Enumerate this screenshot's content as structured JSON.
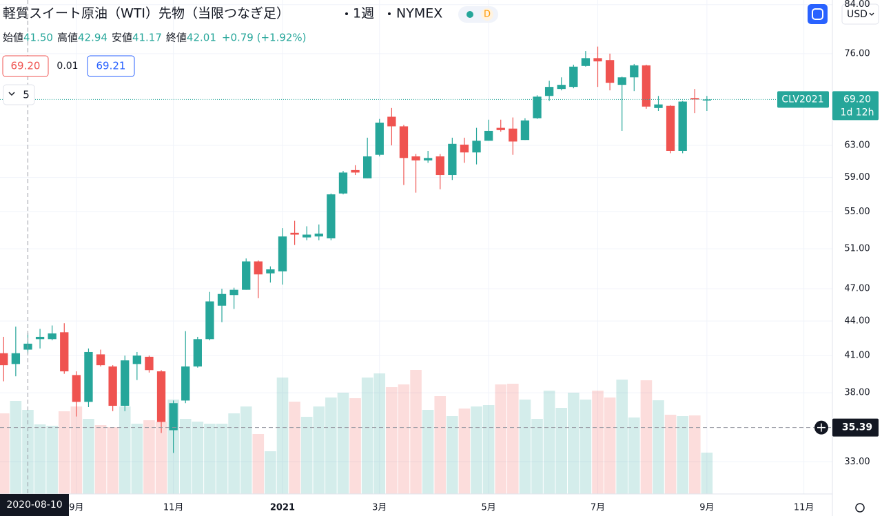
{
  "header": {
    "title": "軽質スイート原油（WTI）先物（当限つなぎ足）",
    "interval": "1週",
    "exchange": "NYMEX",
    "badge": "D",
    "ohlc": [
      {
        "label": "始値",
        "value": "41.50"
      },
      {
        "label": "高値",
        "value": "42.94"
      },
      {
        "label": "安値",
        "value": "41.17"
      },
      {
        "label": "終値",
        "value": "42.01"
      }
    ],
    "change": "+0.79 (+1.92%)"
  },
  "quote": {
    "bid": "69.20",
    "spread": "0.01",
    "ask": "69.21"
  },
  "indicators": "5",
  "currency": "USD",
  "chart_data": {
    "type": "candlestick",
    "categories": [
      null,
      null,
      "2020-08-10",
      null,
      null,
      null,
      null,
      null,
      null,
      null,
      null,
      null,
      null,
      null,
      null,
      null,
      null,
      null,
      null,
      null,
      null,
      null,
      null,
      null,
      null,
      null,
      null,
      null,
      null,
      null,
      null,
      null,
      null,
      null,
      null,
      null,
      null,
      null,
      null,
      null,
      null,
      null,
      null,
      null,
      null,
      null,
      null,
      null,
      null,
      null,
      null,
      null,
      null,
      null,
      null,
      null,
      null,
      null,
      null
    ],
    "open": [
      41.2,
      40.3,
      41.5,
      42.4,
      42.4,
      43.0,
      39.4,
      37.3,
      41.1,
      40.1,
      37.0,
      40.3,
      40.9,
      39.7,
      35.2,
      37.4,
      40.1,
      42.4,
      45.4,
      46.4,
      46.9,
      49.7,
      48.5,
      48.7,
      52.7,
      52.2,
      52.3,
      52.1,
      57.1,
      59.9,
      58.9,
      61.8,
      66.8,
      65.5,
      61.6,
      61.1,
      61.6,
      59.3,
      63.1,
      62.1,
      63.6,
      65.3,
      65.2,
      63.7,
      66.6,
      69.7,
      70.7,
      71.0,
      74.1,
      75.3,
      75.0,
      71.3,
      72.4,
      74.2,
      68.0,
      68.3,
      62.3,
      69.4,
      69.1
    ],
    "high": [
      42.6,
      43.5,
      42.94,
      43.3,
      43.6,
      43.8,
      39.7,
      41.6,
      41.5,
      40.2,
      41.0,
      41.3,
      41.0,
      39.8,
      37.4,
      43.1,
      42.6,
      46.7,
      47.0,
      47.1,
      50.0,
      49.8,
      49.2,
      53.2,
      54.0,
      53.4,
      53.6,
      57.1,
      59.8,
      60.5,
      64.0,
      66.5,
      68.0,
      65.7,
      61.9,
      62.3,
      61.9,
      64.0,
      64.0,
      65.3,
      66.4,
      66.4,
      66.7,
      66.6,
      69.8,
      71.9,
      72.4,
      74.3,
      76.4,
      77.1,
      76.0,
      72.5,
      74.4,
      74.3,
      69.7,
      68.4,
      69.0,
      70.7,
      69.7
    ],
    "low": [
      38.9,
      39.3,
      41.17,
      41.6,
      42.3,
      39.5,
      36.2,
      36.9,
      40.1,
      36.6,
      36.6,
      39.0,
      39.6,
      35.0,
      33.6,
      37.2,
      40.0,
      42.3,
      43.9,
      45.1,
      46.9,
      46.1,
      47.6,
      47.4,
      51.4,
      51.9,
      51.9,
      51.9,
      57.0,
      59.3,
      58.9,
      61.6,
      63.0,
      58.1,
      57.2,
      60.8,
      57.6,
      58.7,
      60.8,
      60.6,
      63.6,
      64.8,
      61.8,
      63.7,
      66.5,
      69.0,
      70.5,
      70.8,
      74.0,
      71.0,
      70.5,
      64.9,
      70.4,
      67.9,
      67.6,
      62.0,
      62.0,
      67.3,
      67.6
    ],
    "close": [
      40.2,
      41.2,
      42.01,
      42.6,
      42.9,
      39.7,
      37.3,
      41.3,
      40.2,
      37.0,
      40.6,
      41.0,
      39.8,
      35.8,
      37.2,
      40.1,
      42.4,
      45.8,
      46.5,
      46.9,
      49.7,
      48.4,
      48.9,
      52.3,
      52.5,
      52.5,
      52.6,
      57.0,
      59.6,
      59.6,
      61.6,
      66.0,
      65.5,
      61.4,
      61.1,
      61.4,
      59.3,
      63.2,
      62.1,
      63.6,
      64.9,
      65.0,
      63.5,
      66.3,
      69.6,
      71.0,
      71.3,
      74.0,
      75.3,
      74.8,
      71.6,
      72.4,
      74.2,
      68.2,
      68.5,
      62.3,
      68.9,
      69.2,
      69.2
    ],
    "volume": [
      117,
      135,
      122,
      101,
      99,
      120,
      127,
      109,
      100,
      97,
      127,
      102,
      107,
      105,
      137,
      109,
      105,
      102,
      102,
      117,
      127,
      87,
      62,
      169,
      134,
      112,
      127,
      140,
      147,
      139,
      169,
      175,
      155,
      159,
      180,
      122,
      142,
      113,
      124,
      127,
      129,
      159,
      160,
      137,
      109,
      150,
      125,
      147,
      137,
      150,
      140,
      166,
      111,
      165,
      136,
      115,
      113,
      114,
      60
    ],
    "colors": {
      "up": "#26a69a",
      "down": "#ef5350"
    },
    "log_scale": true,
    "grid": true,
    "ylim": [
      30.9,
      84.8
    ],
    "yticks": [
      {
        "value": 33,
        "label": "33.00"
      },
      {
        "value": 38,
        "label": "38.00"
      },
      {
        "value": 41,
        "label": "41.00"
      },
      {
        "value": 44,
        "label": "44.00"
      },
      {
        "value": 47,
        "label": "47.00"
      },
      {
        "value": 51,
        "label": "51.00"
      },
      {
        "value": 55,
        "label": "55.00"
      },
      {
        "value": 59,
        "label": "59.00"
      },
      {
        "value": 63,
        "label": "63.00"
      },
      {
        "value": 76,
        "label": "76.00"
      },
      {
        "value": 84,
        "label": "84.00"
      }
    ],
    "xlim": [
      -0.3,
      68.35
    ],
    "xticks": [
      {
        "value": 6,
        "label": "9月"
      },
      {
        "value": 14,
        "label": "11月"
      },
      {
        "value": 23,
        "label": "2021"
      },
      {
        "value": 31,
        "label": "3月"
      },
      {
        "value": 40,
        "label": "5月"
      },
      {
        "value": 49,
        "label": "7月"
      },
      {
        "value": 58,
        "label": "9月"
      },
      {
        "value": 66,
        "label": "11月"
      }
    ],
    "last_price": {
      "value": 69.2,
      "label": "69.20",
      "symbol": "CLV2021",
      "countdown": "1d 12h"
    },
    "crosshair": {
      "value": 35.39,
      "label": "35.39"
    }
  }
}
